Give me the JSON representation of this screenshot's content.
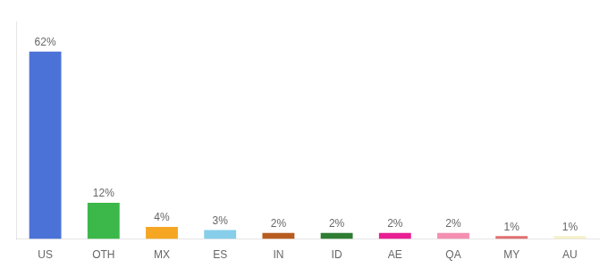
{
  "chart_data": {
    "type": "bar",
    "categories": [
      "US",
      "OTH",
      "MX",
      "ES",
      "IN",
      "ID",
      "AE",
      "QA",
      "MY",
      "AU"
    ],
    "values": [
      62,
      12,
      4,
      3,
      2,
      2,
      2,
      2,
      1,
      1
    ],
    "value_labels": [
      "62%",
      "12%",
      "4%",
      "3%",
      "2%",
      "2%",
      "2%",
      "2%",
      "1%",
      "1%"
    ],
    "colors": [
      "#4b72d6",
      "#3cb84a",
      "#f5a623",
      "#87ceeb",
      "#b85c20",
      "#2e7d32",
      "#e91e93",
      "#f48fb1",
      "#e07070",
      "#f5f0c8"
    ],
    "ylim": [
      0,
      72
    ],
    "data_labels": true,
    "tick_labels": "x",
    "grid": false
  }
}
